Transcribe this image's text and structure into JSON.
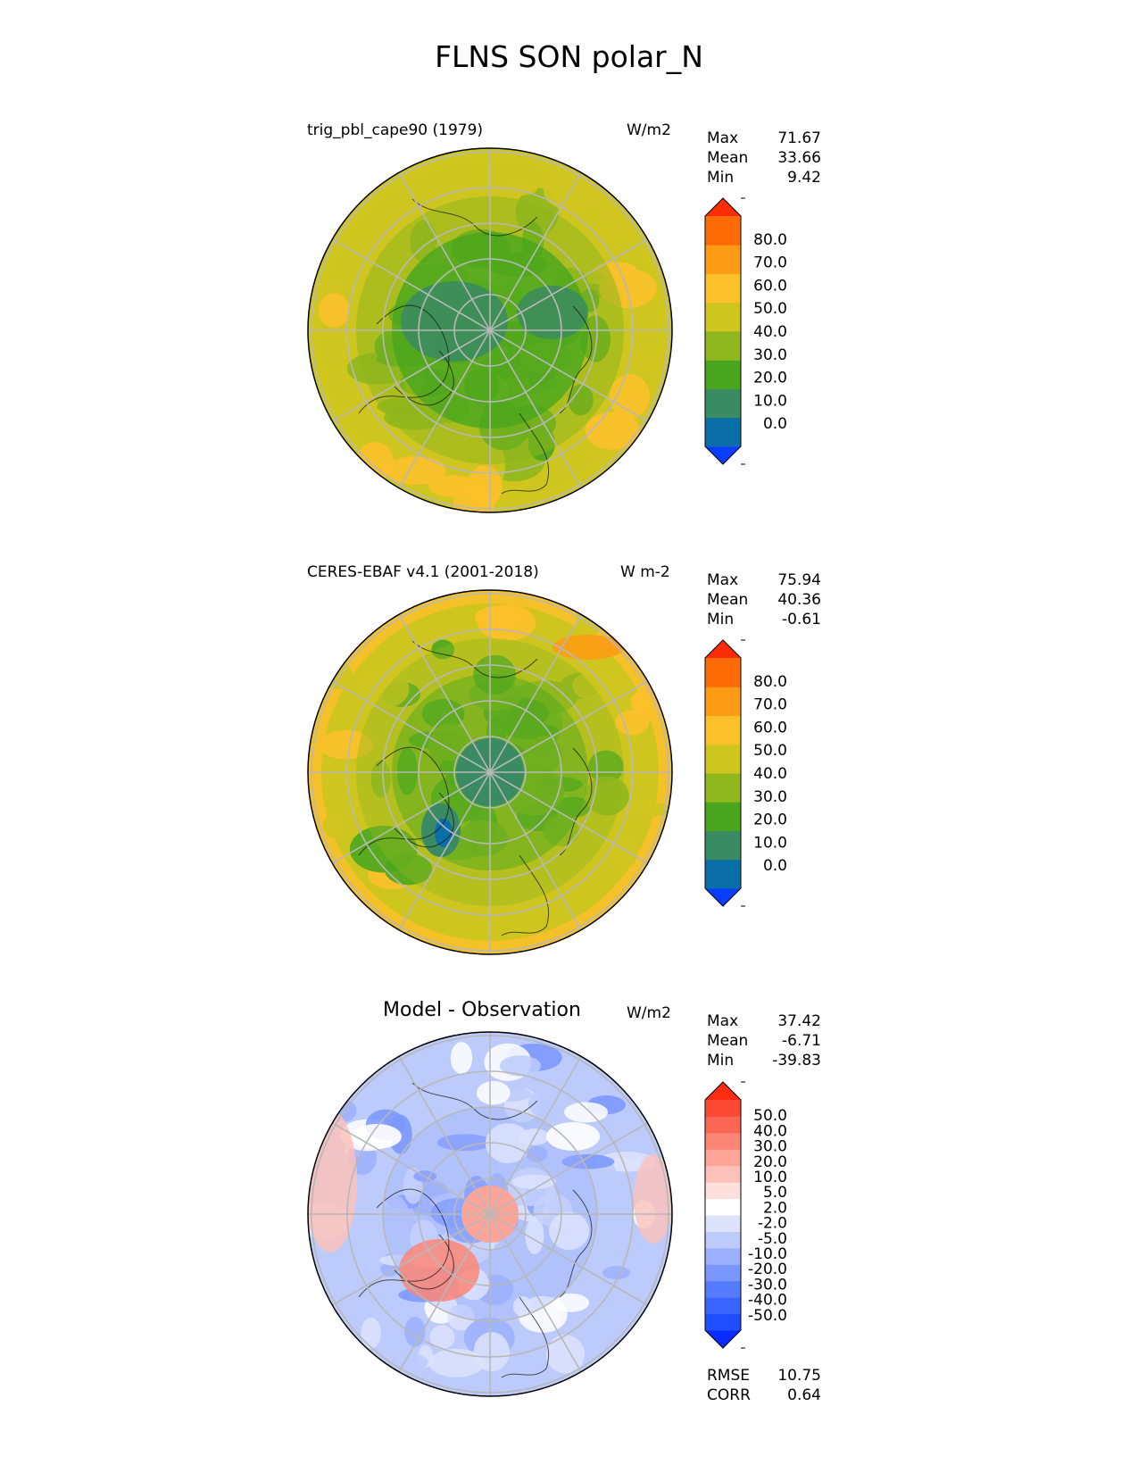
{
  "title": "FLNS SON polar_N",
  "panels": [
    {
      "title": "trig_pbl_cape90 (1979)",
      "units": "W/m2",
      "stats": [
        {
          "label": "Max",
          "value": "71.67"
        },
        {
          "label": "Mean",
          "value": "33.66"
        },
        {
          "label": "Min",
          "value": "9.42"
        }
      ],
      "colorbar": {
        "colors": [
          "#0a3dff",
          "#0a6ea8",
          "#3a8a63",
          "#4aa61e",
          "#8fb71e",
          "#cfc51f",
          "#fbc02a",
          "#fc9c14",
          "#fc6b06",
          "#fc2c07"
        ],
        "ticks": [
          "80.0",
          "70.0",
          "60.0",
          "50.0",
          "40.0",
          "30.0",
          "20.0",
          "10.0",
          "0.0"
        ]
      }
    },
    {
      "title": "CERES-EBAF v4.1 (2001-2018)",
      "units": "W m-2",
      "stats": [
        {
          "label": "Max",
          "value": "75.94"
        },
        {
          "label": "Mean",
          "value": "40.36"
        },
        {
          "label": "Min",
          "value": "-0.61"
        }
      ],
      "colorbar": {
        "colors": [
          "#0a3dff",
          "#0a6ea8",
          "#3a8a63",
          "#4aa61e",
          "#8fb71e",
          "#cfc51f",
          "#fbc02a",
          "#fc9c14",
          "#fc6b06",
          "#fc2c07"
        ],
        "ticks": [
          "80.0",
          "70.0",
          "60.0",
          "50.0",
          "40.0",
          "30.0",
          "20.0",
          "10.0",
          "0.0"
        ]
      }
    },
    {
      "title": "Model - Observation",
      "units": "W/m2",
      "stats": [
        {
          "label": "Max",
          "value": "37.42"
        },
        {
          "label": "Mean",
          "value": "-6.71"
        },
        {
          "label": "Min",
          "value": "-39.83"
        }
      ],
      "extra_stats": [
        {
          "label": "RMSE",
          "value": "10.75"
        },
        {
          "label": "CORR",
          "value": "0.64"
        }
      ],
      "colorbar": {
        "colors": [
          "#0a2cff",
          "#1f4dff",
          "#3a63ff",
          "#577bff",
          "#7a96ff",
          "#9cb0ff",
          "#bccbfb",
          "#dde3fb",
          "#ffffff",
          "#fde0dc",
          "#fcc2ba",
          "#fca498",
          "#fc8676",
          "#fc6654",
          "#fc4a35",
          "#fc2c12"
        ],
        "ticks": [
          "50.0",
          "40.0",
          "30.0",
          "20.0",
          "10.0",
          "5.0",
          "2.0",
          "-2.0",
          "-5.0",
          "-10.0",
          "-20.0",
          "-30.0",
          "-40.0",
          "-50.0"
        ]
      }
    }
  ],
  "chart_data": [
    {
      "type": "heatmap",
      "projection": "north polar stereographic",
      "title": "trig_pbl_cape90 (1979)",
      "units": "W/m2",
      "stats": {
        "max": 71.67,
        "mean": 33.66,
        "min": 9.42
      },
      "contour_levels": [
        0,
        10,
        20,
        30,
        40,
        50,
        60,
        70,
        80
      ],
      "colorbar_extend": "both"
    },
    {
      "type": "heatmap",
      "projection": "north polar stereographic",
      "title": "CERES-EBAF v4.1 (2001-2018)",
      "units": "W m-2",
      "stats": {
        "max": 75.94,
        "mean": 40.36,
        "min": -0.61
      },
      "contour_levels": [
        0,
        10,
        20,
        30,
        40,
        50,
        60,
        70,
        80
      ],
      "colorbar_extend": "both"
    },
    {
      "type": "heatmap",
      "projection": "north polar stereographic",
      "title": "Model - Observation",
      "units": "W/m2",
      "stats": {
        "max": 37.42,
        "mean": -6.71,
        "min": -39.83,
        "rmse": 10.75,
        "corr": 0.64
      },
      "contour_levels": [
        -50,
        -40,
        -30,
        -20,
        -10,
        -5,
        -2,
        2,
        5,
        10,
        20,
        30,
        40,
        50
      ],
      "colorbar_extend": "both"
    }
  ]
}
